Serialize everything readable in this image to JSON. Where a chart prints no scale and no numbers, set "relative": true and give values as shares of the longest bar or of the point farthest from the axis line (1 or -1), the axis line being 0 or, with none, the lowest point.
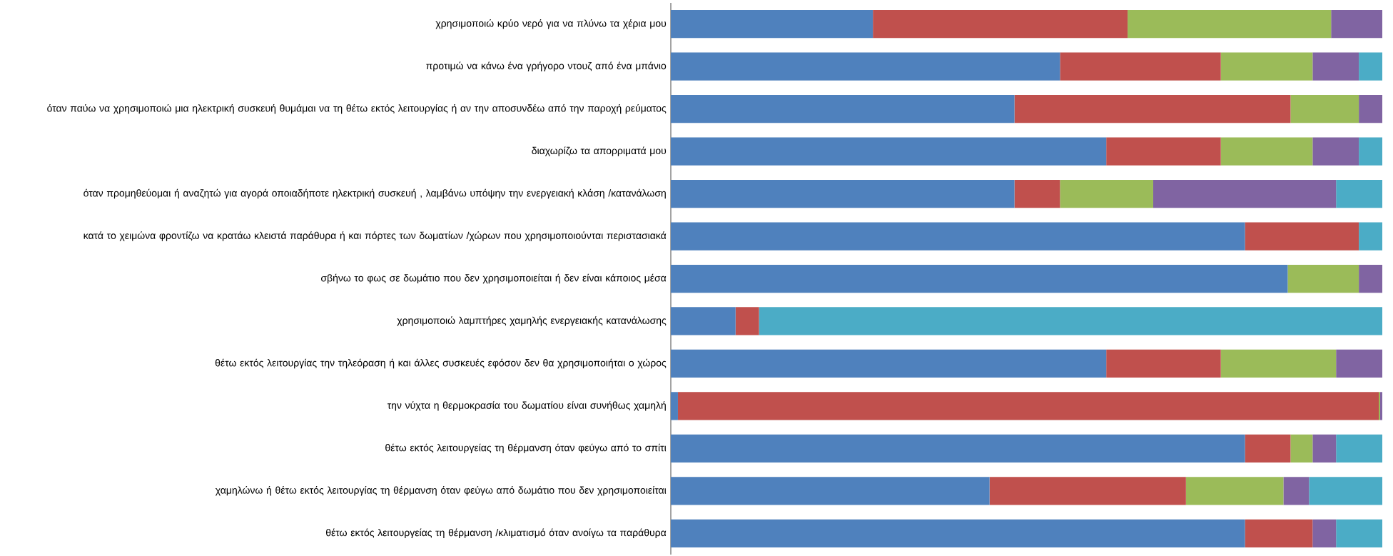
{
  "chart_data": {
    "type": "bar",
    "orientation": "horizontal",
    "stacked": true,
    "relative": true,
    "categories": [
      "χρησιμοποιώ κρύο νερό για να πλύνω τα χέρια μου",
      "προτιμώ να κάνω ένα γρήγορο ντουζ από ένα μπάνιο",
      "όταν παύω να χρησιμοποιώ μια ηλεκτρική συσκευή θυμάμαι να τη θέτω εκτός λειτουργίας ή αν την αποσυνδέω από την παροχή ρεύματος",
      "διαχωρίζω τα απορριματά μου",
      "όταν προμηθεύομαι ή αναζητώ για αγορά οποιαδήποτε ηλεκτρική συσκευή , λαμβάνω υπόψην την ενεργειακή κλάση /κατανάλωση",
      "κατά το χειμώνα φροντίζω να κρατάω κλειστά παράθυρα ή και πόρτες των δωματίων /χώρων που χρησιμοποιούνται περιστασιακά",
      "σβήνω το φως σε δωμάτιο που δεν χρησιμοποιείται ή δεν είναι κάποιος μέσα",
      "χρησιμοποιώ λαμπτήρες χαμηλής ενεργειακής κατανάλωσης",
      "θέτω εκτός λειτουργίας την τηλεόραση ή και άλλες συσκευές εφόσον δεν θα χρησιμοποιήται ο χώρος",
      "την νύχτα η θερμοκρασία του δωματίου είναι συνήθως χαμηλή",
      "θέτω εκτός λειτουργείας τη θέρμανση όταν φεύγω από το σπίτι",
      "χαμηλώνω ή θέτω εκτός λειτουργίας τη θέρμανση όταν φεύγω από δωμάτιο που δεν χρησιμοποιείται",
      "θέτω εκτός λειτουργείας τη θέρμανση /κλιματισμό όταν ανοίγω τα παράθυρα"
    ],
    "series": [
      {
        "color": "#4f81bd",
        "values": [
          0.284,
          0.547,
          0.483,
          0.612,
          0.483,
          0.807,
          0.867,
          0.091,
          0.612,
          0.01,
          0.807,
          0.448,
          0.807
        ]
      },
      {
        "color": "#c0504d",
        "values": [
          0.358,
          0.226,
          0.388,
          0.161,
          0.064,
          0.16,
          0,
          0.033,
          0.161,
          0.985,
          0.064,
          0.276,
          0.095
        ]
      },
      {
        "color": "#9bbb59",
        "values": [
          0.286,
          0.129,
          0.096,
          0.129,
          0.131,
          0,
          0.1,
          0,
          0.162,
          0.002,
          0.031,
          0.137,
          0
        ]
      },
      {
        "color": "#8064a2",
        "values": [
          0.072,
          0.065,
          0.033,
          0.065,
          0.257,
          0,
          0.033,
          0,
          0.065,
          0.003,
          0.033,
          0.036,
          0.033
        ]
      },
      {
        "color": "#4bacc6",
        "values": [
          0,
          0.033,
          0,
          0.033,
          0.065,
          0.033,
          0,
          0.876,
          0,
          0,
          0.065,
          0.103,
          0.065
        ]
      }
    ]
  }
}
